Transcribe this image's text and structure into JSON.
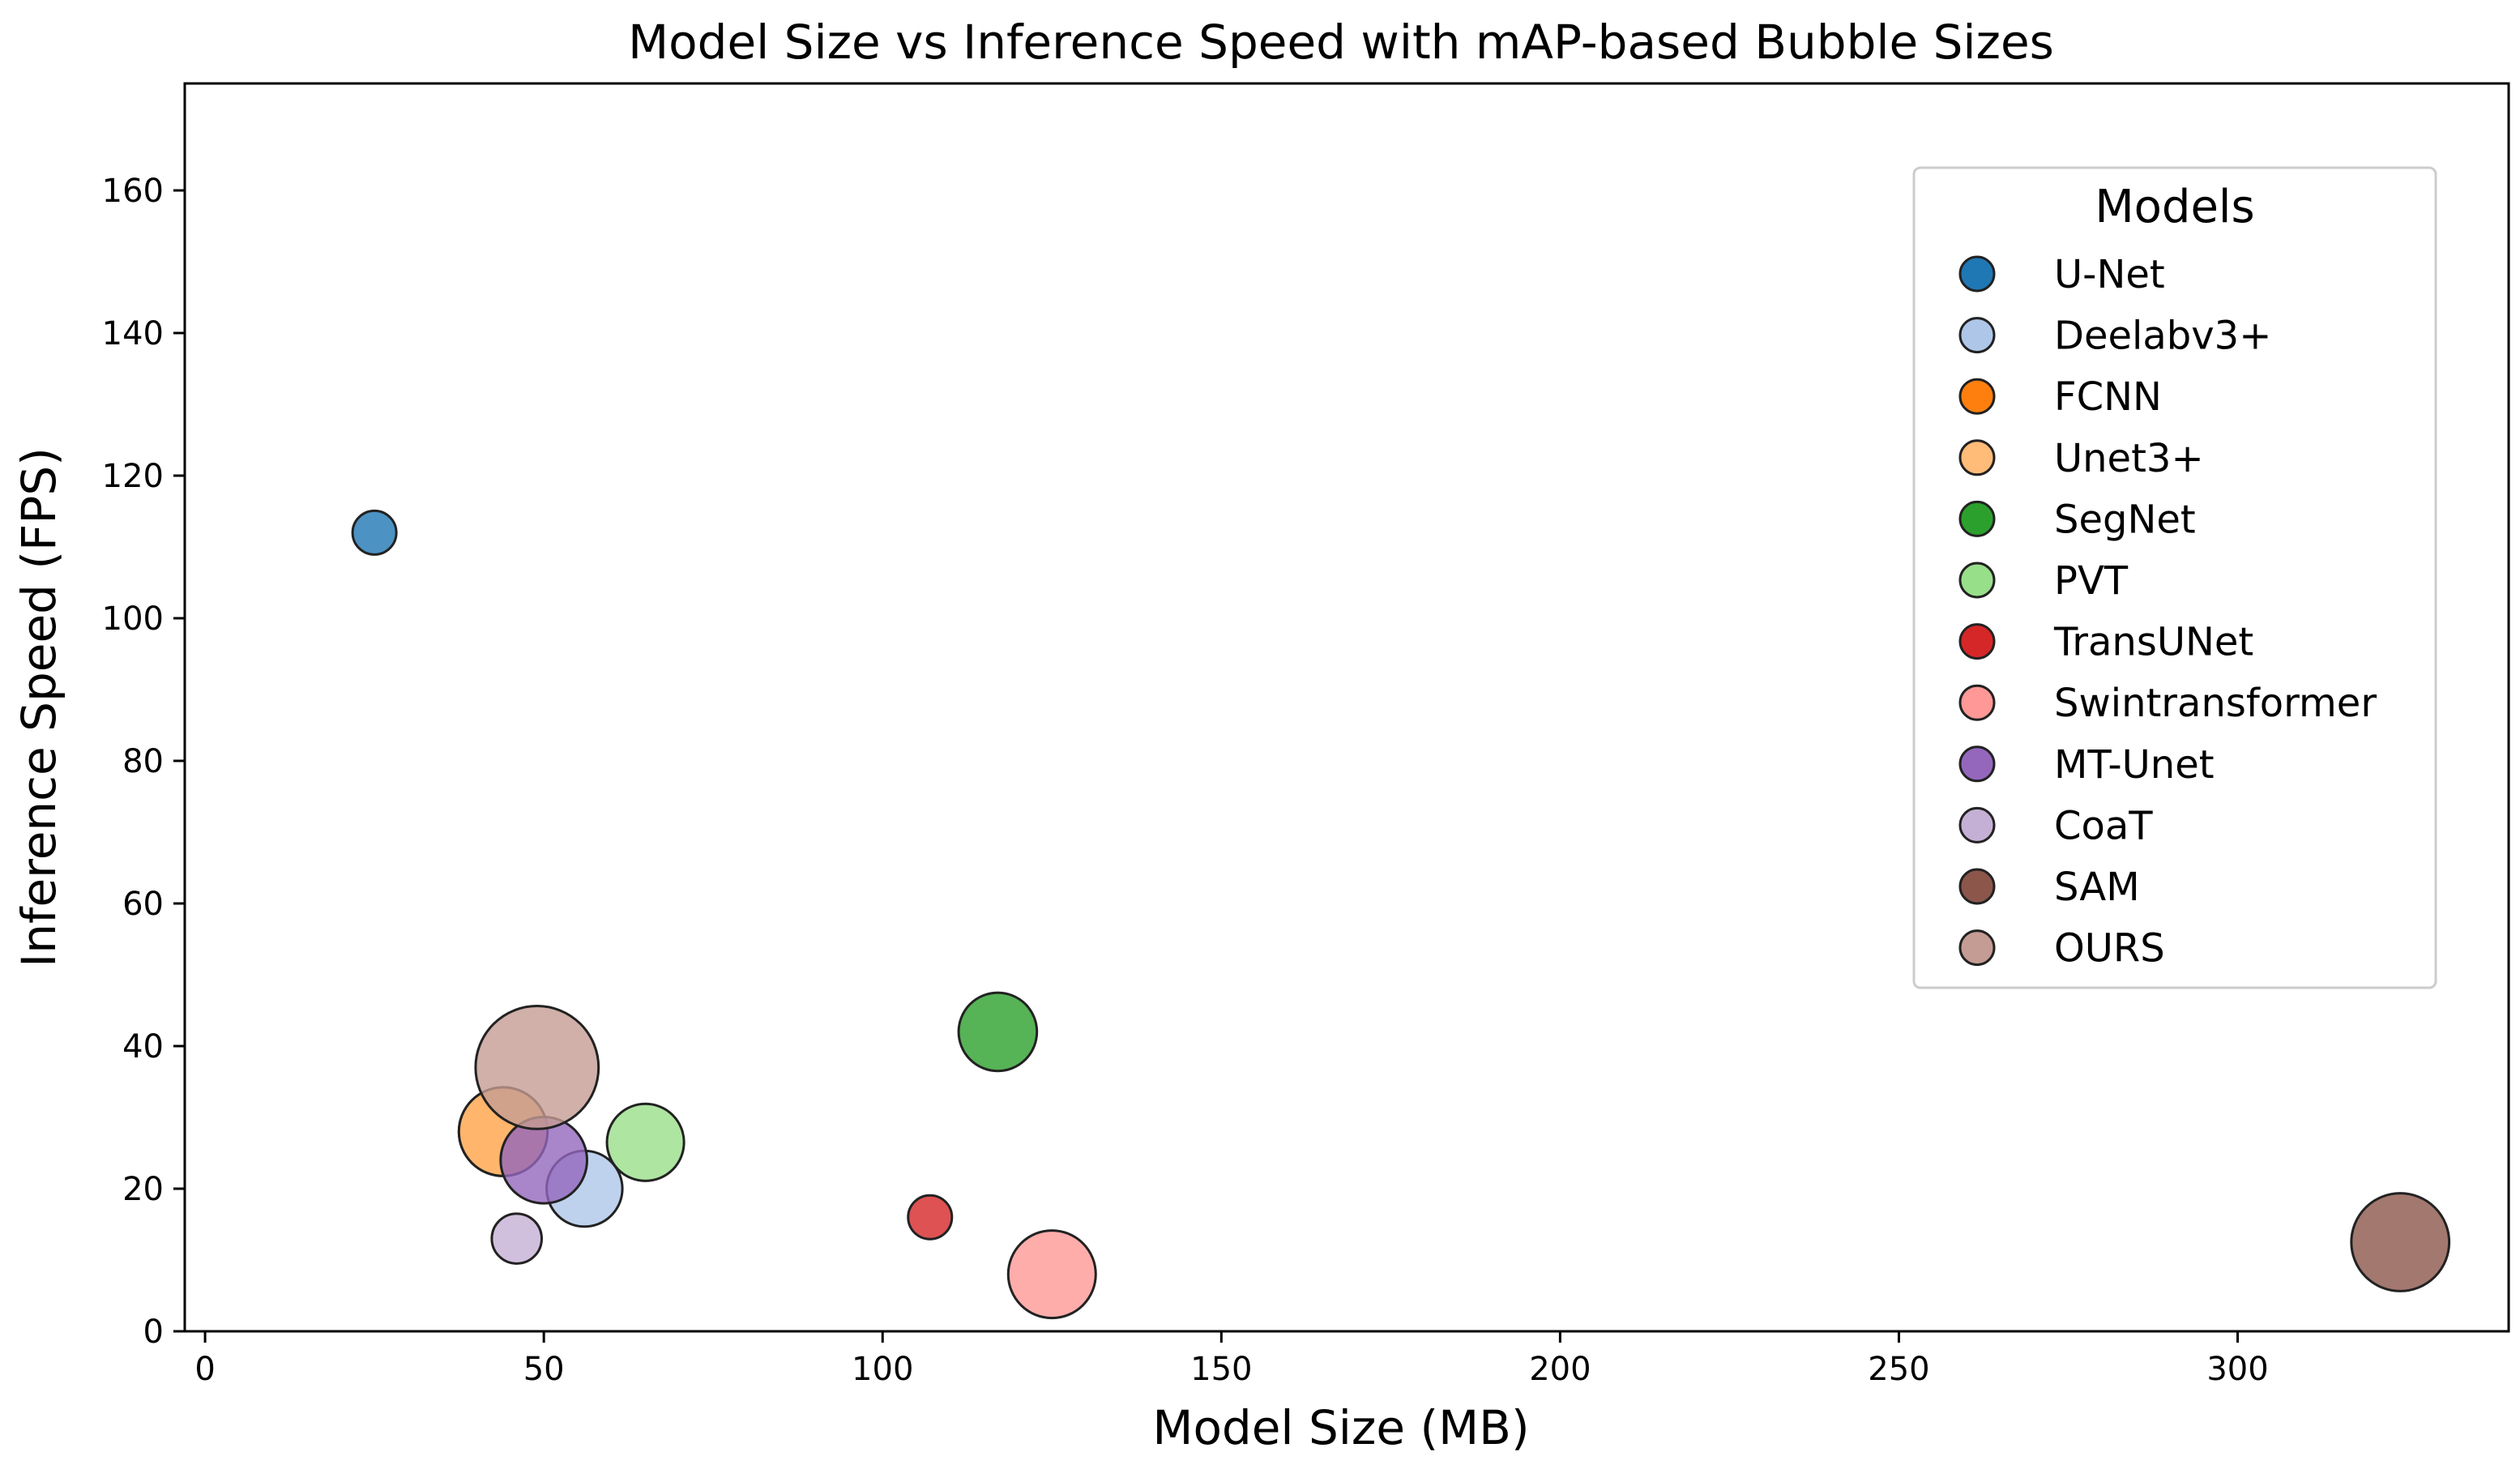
{
  "chart_data": {
    "type": "scatter",
    "title": "Model Size vs Inference Speed with mAP-based Bubble Sizes",
    "xlabel": "Model Size (MB)",
    "ylabel": "Inference Speed (FPS)",
    "xlim": [
      -3,
      340
    ],
    "ylim": [
      0,
      175
    ],
    "xticks": [
      0,
      50,
      100,
      150,
      200,
      250,
      300
    ],
    "yticks": [
      0,
      20,
      40,
      60,
      80,
      100,
      120,
      140,
      160
    ],
    "legend_title": "Models",
    "legend_position": "top-right",
    "series": [
      {
        "name": "U-Net",
        "x": 25,
        "y": 112,
        "size": 1.0,
        "color": "#1f77b4"
      },
      {
        "name": "Deelabv3+",
        "x": 56,
        "y": 20,
        "size": 3.0,
        "color": "#aec7e8"
      },
      {
        "name": "FCNN",
        "x": 44,
        "y": 28,
        "size": 4.1,
        "color": "#ff7f0e"
      },
      {
        "name": "Unet3+",
        "x": 44,
        "y": 28,
        "size": 4.1,
        "color": "#ffbb78"
      },
      {
        "name": "SegNet",
        "x": 117,
        "y": 42,
        "size": 3.2,
        "color": "#2ca02c"
      },
      {
        "name": "PVT",
        "x": 65,
        "y": 26.5,
        "size": 3.1,
        "color": "#98df8a"
      },
      {
        "name": "TransUNet",
        "x": 107,
        "y": 16,
        "size": 1.0,
        "color": "#d62728"
      },
      {
        "name": "Swintransformer",
        "x": 125,
        "y": 8,
        "size": 4.0,
        "color": "#ff9896"
      },
      {
        "name": "MT-Unet",
        "x": 50,
        "y": 24,
        "size": 3.9,
        "color": "#9467bd"
      },
      {
        "name": "CoaT",
        "x": 46,
        "y": 13,
        "size": 1.3,
        "color": "#c5b0d5"
      },
      {
        "name": "SAM",
        "x": 324,
        "y": 12.5,
        "size": 5.0,
        "color": "#8c564b"
      },
      {
        "name": "OURS",
        "x": 49,
        "y": 37,
        "size": 7.9,
        "color": "#c49c94"
      }
    ]
  }
}
